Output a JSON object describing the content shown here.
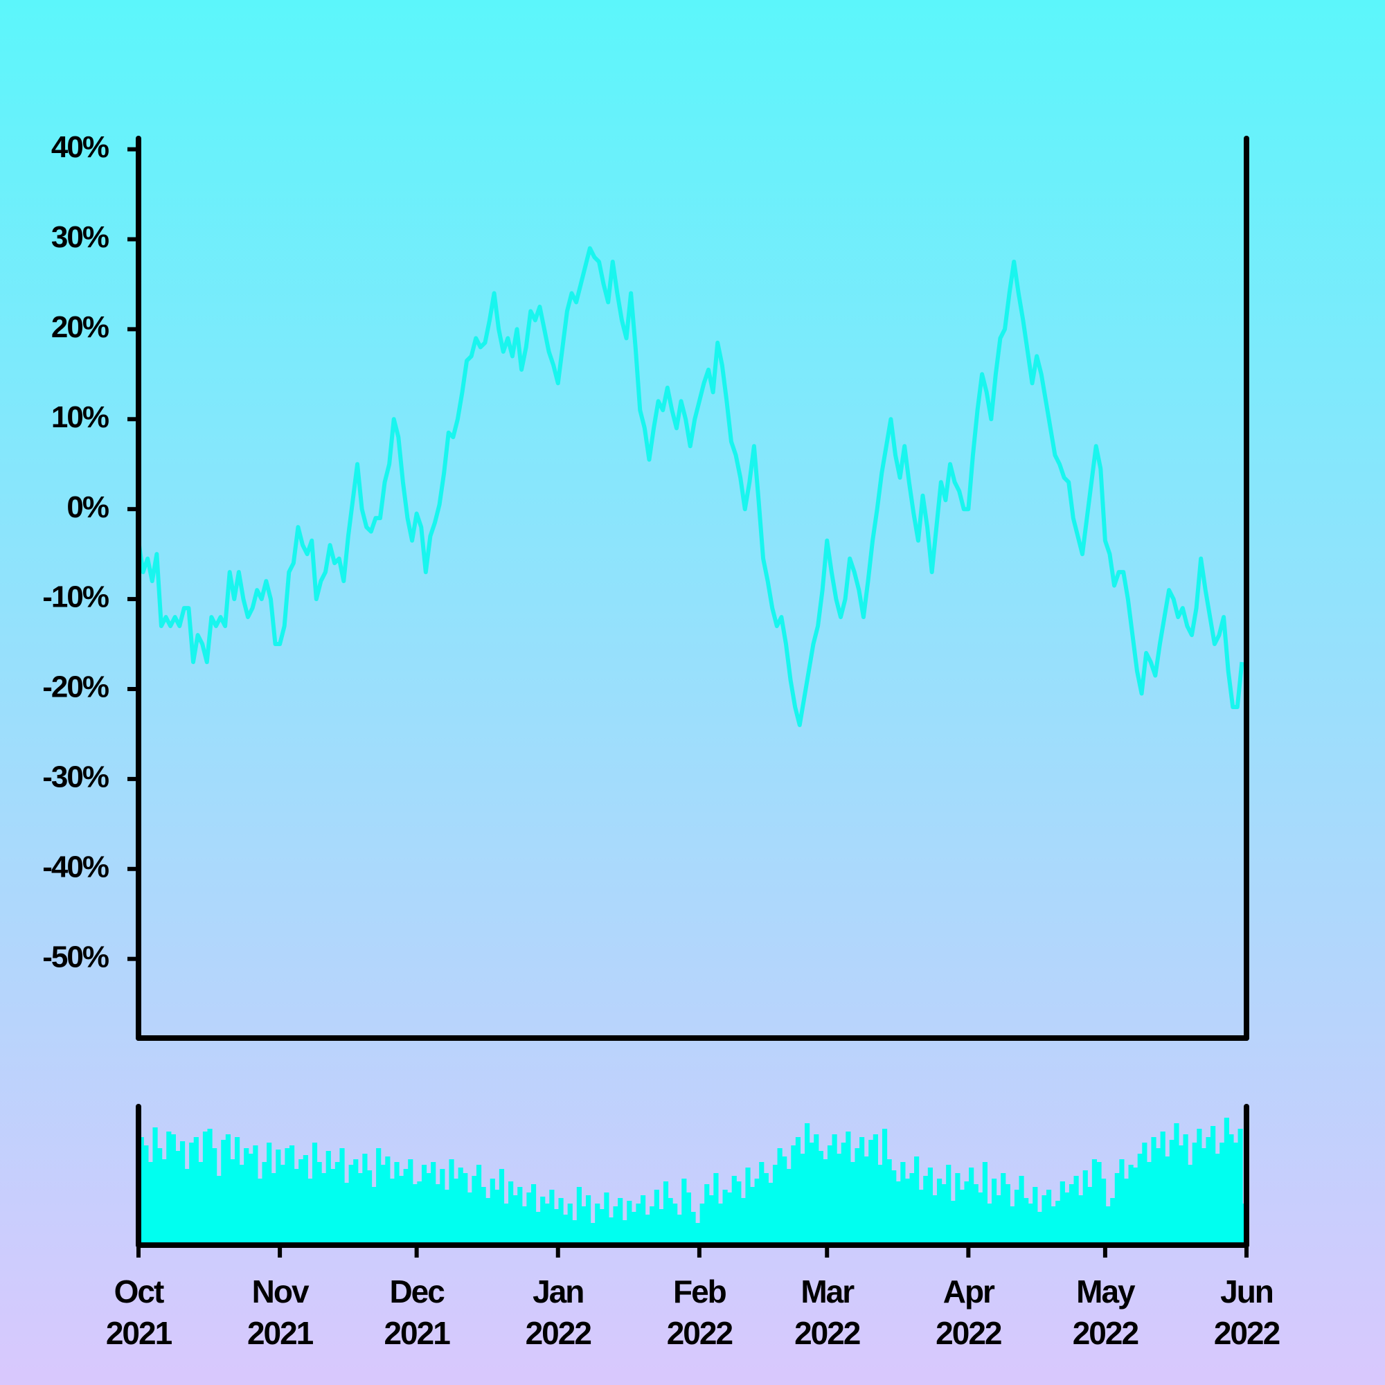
{
  "chart_data": {
    "type": "line",
    "color": "#19f5ee",
    "ylim": [
      -58.8,
      41.2
    ],
    "yticks": [
      {
        "value": 40,
        "label": "40%"
      },
      {
        "value": 30,
        "label": "30%"
      },
      {
        "value": 20,
        "label": "20%"
      },
      {
        "value": 10,
        "label": "10%"
      },
      {
        "value": 0,
        "label": "0%"
      },
      {
        "value": -10,
        "label": "-10%"
      },
      {
        "value": -20,
        "label": "-20%"
      },
      {
        "value": -30,
        "label": "-30%"
      },
      {
        "value": -40,
        "label": "-40%"
      },
      {
        "value": -50,
        "label": "-50%"
      }
    ],
    "categories": [
      "Oct 2021",
      null,
      null,
      null,
      null,
      null,
      null,
      null,
      null,
      null,
      null,
      null,
      null,
      null,
      null,
      null,
      null,
      null,
      null,
      null,
      null,
      null,
      null,
      null,
      null,
      null,
      null,
      null,
      null,
      null,
      null,
      "Nov 2021",
      null,
      null,
      null,
      null,
      null,
      null,
      null,
      null,
      null,
      null,
      null,
      null,
      null,
      null,
      null,
      null,
      null,
      null,
      null,
      null,
      null,
      null,
      null,
      null,
      null,
      null,
      null,
      null,
      null,
      "Dec 2021",
      null,
      null,
      null,
      null,
      null,
      null,
      null,
      null,
      null,
      null,
      null,
      null,
      null,
      null,
      null,
      null,
      null,
      null,
      null,
      null,
      null,
      null,
      null,
      null,
      null,
      null,
      null,
      null,
      null,
      null,
      "Jan 2022",
      null,
      null,
      null,
      null,
      null,
      null,
      null,
      null,
      null,
      null,
      null,
      null,
      null,
      null,
      null,
      null,
      null,
      null,
      null,
      null,
      null,
      null,
      null,
      null,
      null,
      null,
      null,
      null,
      null,
      null,
      "Feb 2022",
      null,
      null,
      null,
      null,
      null,
      null,
      null,
      null,
      null,
      null,
      null,
      null,
      null,
      null,
      null,
      null,
      null,
      null,
      null,
      null,
      null,
      null,
      null,
      null,
      null,
      null,
      null,
      "Mar 2022",
      null,
      null,
      null,
      null,
      null,
      null,
      null,
      null,
      null,
      null,
      null,
      null,
      null,
      null,
      null,
      null,
      null,
      null,
      null,
      null,
      null,
      null,
      null,
      null,
      null,
      null,
      null,
      null,
      null,
      null,
      "Apr 2022",
      null,
      null,
      null,
      null,
      null,
      null,
      null,
      null,
      null,
      null,
      null,
      null,
      null,
      null,
      null,
      null,
      null,
      null,
      null,
      null,
      null,
      null,
      null,
      null,
      null,
      null,
      null,
      null,
      null,
      "May 2022",
      null,
      null,
      null,
      null,
      null,
      null,
      null,
      null,
      null,
      null,
      null,
      null,
      null,
      null,
      null,
      null,
      null,
      null,
      null,
      null,
      null,
      null,
      null,
      null,
      null,
      null,
      null,
      null,
      null,
      null,
      "Jun 2022"
    ],
    "values": [
      -3.5,
      -7,
      -5.5,
      -8,
      -5,
      -13,
      -12,
      -13,
      -12,
      -13,
      -11,
      -11,
      -17,
      -14,
      -15,
      -17,
      -12,
      -13,
      -12,
      -13,
      -7,
      -10,
      -7,
      -10,
      -12,
      -11,
      -9,
      -10,
      -8,
      -10,
      -15,
      -15,
      -13,
      -7,
      -6,
      -2,
      -4,
      -5,
      -3.5,
      -10,
      -8,
      -7,
      -4,
      -6,
      -5.5,
      -8,
      -3,
      1,
      5,
      0,
      -2,
      -2.5,
      -1,
      -1,
      3,
      5,
      10,
      8,
      3,
      -1,
      -3.5,
      -0.5,
      -2,
      -7,
      -3,
      -1.5,
      0.5,
      4,
      8.5,
      8,
      10,
      13,
      16.5,
      17,
      19,
      18,
      18.5,
      21,
      24,
      20,
      17.5,
      19,
      17,
      20,
      15.5,
      18,
      22,
      21,
      22.5,
      20,
      17.5,
      16,
      14,
      18,
      22,
      24,
      23,
      25,
      27,
      29,
      28,
      27.5,
      25,
      23,
      27.5,
      24,
      21,
      19,
      24,
      18,
      11,
      9,
      5.5,
      9,
      12,
      11,
      13.5,
      11,
      9,
      12,
      10,
      7,
      10,
      12,
      14,
      15.5,
      13,
      18.5,
      16,
      12,
      7.5,
      6,
      3.5,
      0,
      3,
      7,
      1,
      -5.5,
      -8,
      -11,
      -13,
      -12,
      -15,
      -19,
      -22,
      -24,
      -21,
      -18,
      -15,
      -13,
      -9,
      -3.5,
      -7,
      -10,
      -12,
      -10,
      -5.5,
      -7,
      -9,
      -12,
      -8,
      -3.5,
      0,
      4,
      7,
      10,
      6,
      3.5,
      7,
      3,
      -0.5,
      -3.5,
      1.5,
      -2,
      -7,
      -2,
      3,
      1,
      5,
      3,
      2,
      0,
      0,
      6,
      11,
      15,
      13,
      10,
      15,
      19,
      20,
      24,
      27.5,
      24,
      21,
      17.5,
      14,
      17,
      15,
      12,
      9,
      6,
      5,
      3.5,
      3,
      -1,
      -3,
      -5,
      -1,
      3,
      7,
      4.5,
      -3.5,
      -5,
      -8.5,
      -7,
      -7,
      -10,
      -14,
      -18,
      -20.5,
      -16,
      -17,
      -18.5,
      -15,
      -12,
      -9,
      -10,
      -12,
      -11,
      -13,
      -14,
      -11,
      -5.5,
      -9,
      -12,
      -15,
      -14,
      -12,
      -18,
      -22,
      -22,
      -17,
      null
    ],
    "volume": {
      "type": "bar",
      "color": "#00fff0",
      "ylim": [
        0,
        100
      ],
      "values": [
        78,
        72,
        60,
        85,
        70,
        62,
        82,
        80,
        68,
        75,
        55,
        74,
        78,
        60,
        82,
        84,
        70,
        50,
        76,
        80,
        62,
        78,
        58,
        70,
        66,
        72,
        48,
        60,
        74,
        52,
        69,
        58,
        70,
        72,
        55,
        62,
        65,
        48,
        74,
        60,
        52,
        68,
        55,
        60,
        70,
        45,
        58,
        62,
        52,
        66,
        54,
        42,
        70,
        58,
        64,
        48,
        60,
        50,
        55,
        62,
        44,
        46,
        58,
        52,
        60,
        44,
        55,
        40,
        62,
        48,
        56,
        52,
        38,
        50,
        58,
        42,
        34,
        48,
        40,
        55,
        30,
        46,
        36,
        42,
        28,
        38,
        44,
        24,
        35,
        30,
        40,
        26,
        34,
        22,
        30,
        18,
        42,
        28,
        36,
        16,
        30,
        26,
        38,
        20,
        28,
        34,
        18,
        32,
        24,
        30,
        36,
        22,
        28,
        40,
        26,
        46,
        34,
        30,
        22,
        48,
        38,
        24,
        16,
        30,
        44,
        36,
        52,
        30,
        40,
        38,
        50,
        46,
        34,
        56,
        42,
        48,
        60,
        52,
        45,
        58,
        70,
        64,
        55,
        72,
        78,
        66,
        88,
        74,
        80,
        68,
        62,
        72,
        80,
        66,
        74,
        82,
        60,
        70,
        78,
        64,
        76,
        80,
        58,
        84,
        62,
        54,
        46,
        60,
        48,
        52,
        64,
        40,
        50,
        56,
        36,
        48,
        44,
        58,
        32,
        52,
        40,
        46,
        56,
        44,
        38,
        60,
        30,
        48,
        36,
        52,
        44,
        28,
        40,
        50,
        34,
        30,
        42,
        24,
        36,
        40,
        28,
        32,
        46,
        38,
        44,
        50,
        36,
        54,
        42,
        62,
        60,
        48,
        28,
        34,
        52,
        62,
        48,
        58,
        56,
        66,
        74,
        60,
        78,
        70,
        82,
        64,
        76,
        88,
        72,
        80,
        58,
        74,
        84,
        70,
        78,
        86,
        66,
        74,
        92,
        80,
        74,
        84,
        30,
        null
      ]
    }
  }
}
